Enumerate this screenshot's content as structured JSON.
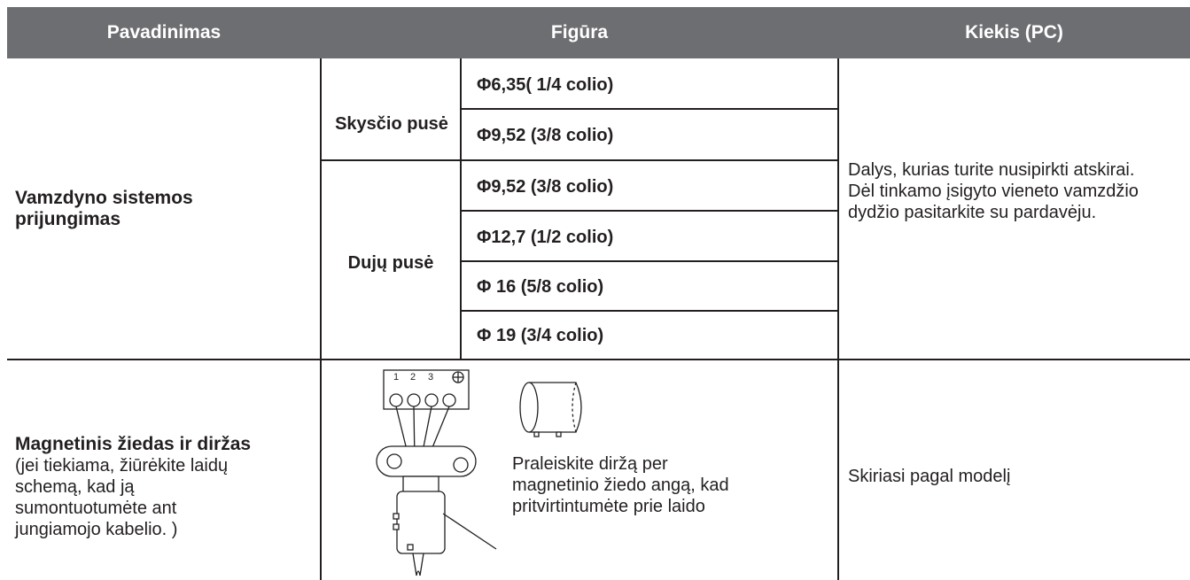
{
  "table": {
    "header": [
      "Pavadinimas",
      "Figūra",
      "Kiekis (PC)"
    ],
    "row1": {
      "name": "Vamzdyno sistemos prijungimas",
      "groups": [
        {
          "label": "Skysčio pusė",
          "sizes": [
            "Φ6,35( 1/4 colio)",
            "Φ9,52 (3/8 colio)"
          ]
        },
        {
          "label": "Dujų pusė",
          "sizes": [
            "Φ9,52 (3/8 colio)",
            "Φ12,7 (1/2 colio)",
            "Φ 16 (5/8 colio)",
            "Φ 19 (3/4 colio)"
          ]
        }
      ],
      "quantity": "Dalys, kurias turite nusipirkti atskirai. Dėl tinkamo įsigyto vieneto vamzdžio dydžio pasitarkite su pardavėju."
    },
    "row2": {
      "name": "Magnetinis žiedas ir diržas",
      "note": "(jei tiekiama, žiūrėkite laidų schemą, kad ją sumontuotumėte ant jungiamojo kabelio. )",
      "terminal_labels": [
        "1",
        "2",
        "3"
      ],
      "caption": "Praleiskite diržą per magnetinio žiedo angą, kad pritvirtintumėte prie laido",
      "quantity": "Skiriasi pagal modelį"
    }
  }
}
